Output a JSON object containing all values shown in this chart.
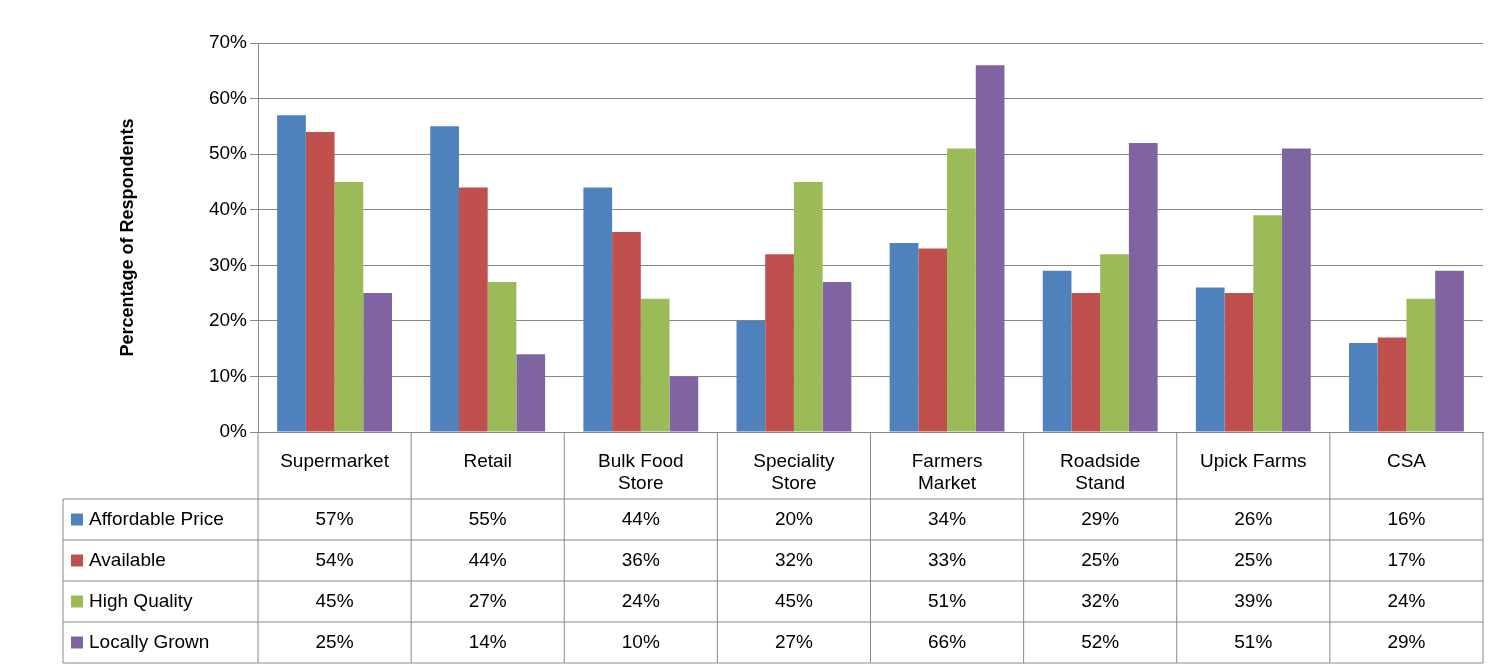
{
  "chart_data": {
    "type": "bar",
    "ylabel": "Percentage of Respondents",
    "categories": [
      "Supermarket",
      "Retail",
      "Bulk Food Store",
      "Speciality Store",
      "Farmers Market",
      "Roadside Stand",
      "Upick Farms",
      "CSA"
    ],
    "series": [
      {
        "name": "Affordable Price",
        "color": "#4f81bd",
        "values": [
          57,
          55,
          44,
          20,
          34,
          29,
          26,
          16
        ],
        "value_labels": [
          "57%",
          "55%",
          "44%",
          "20%",
          "34%",
          "29%",
          "26%",
          "16%"
        ]
      },
      {
        "name": "Available",
        "color": "#c0504d",
        "values": [
          54,
          44,
          36,
          32,
          33,
          25,
          25,
          17
        ],
        "value_labels": [
          "54%",
          "44%",
          "36%",
          "32%",
          "33%",
          "25%",
          "25%",
          "17%"
        ]
      },
      {
        "name": "High Quality",
        "color": "#9bbb59",
        "values": [
          45,
          27,
          24,
          45,
          51,
          32,
          39,
          24
        ],
        "value_labels": [
          "45%",
          "27%",
          "24%",
          "45%",
          "51%",
          "32%",
          "39%",
          "24%"
        ]
      },
      {
        "name": "Locally Grown",
        "color": "#8064a2",
        "values": [
          25,
          14,
          10,
          27,
          66,
          52,
          51,
          29
        ],
        "value_labels": [
          "25%",
          "14%",
          "10%",
          "27%",
          "66%",
          "52%",
          "51%",
          "29%"
        ]
      }
    ],
    "ylim": [
      0,
      70
    ],
    "yticks": [
      {
        "value": 0,
        "label": "0%"
      },
      {
        "value": 10,
        "label": "10%"
      },
      {
        "value": 20,
        "label": "20%"
      },
      {
        "value": 30,
        "label": "30%"
      },
      {
        "value": 40,
        "label": "40%"
      },
      {
        "value": 50,
        "label": "50%"
      },
      {
        "value": 60,
        "label": "60%"
      },
      {
        "value": 70,
        "label": "70%"
      }
    ],
    "grid": "y",
    "legend": "bottom left"
  }
}
